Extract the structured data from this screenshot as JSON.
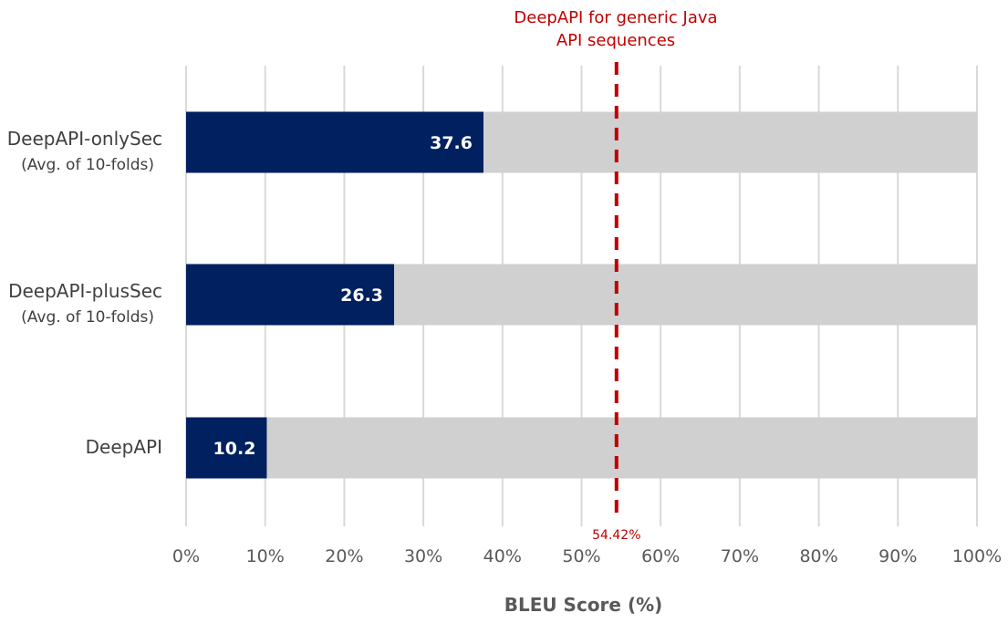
{
  "chart_data": {
    "type": "bar",
    "orientation": "horizontal",
    "categories": [
      {
        "name": "DeepAPI-onlySec",
        "sub": "(Avg. of 10-folds)"
      },
      {
        "name": "DeepAPI-plusSec",
        "sub": "(Avg. of 10-folds)"
      },
      {
        "name": "DeepAPI",
        "sub": ""
      }
    ],
    "values": [
      37.6,
      26.3,
      10.2
    ],
    "value_labels": [
      "37.6",
      "26.3",
      "10.2"
    ],
    "background_value": 100,
    "xlabel": "BLEU Score (%)",
    "xlim": [
      0,
      100
    ],
    "x_ticks": [
      "0%",
      "10%",
      "20%",
      "30%",
      "40%",
      "50%",
      "60%",
      "70%",
      "80%",
      "90%",
      "100%"
    ],
    "grid": "vertical",
    "colors": {
      "bar": "#002060",
      "background_bar": "#d0d0d0",
      "reference": "#c00000",
      "grid": "#d9d9d9"
    },
    "reference_line": {
      "value": 54.42,
      "value_label": "54.42%",
      "label_lines": [
        "DeepAPI for generic Java",
        "API sequences"
      ],
      "style": "dashed"
    }
  }
}
